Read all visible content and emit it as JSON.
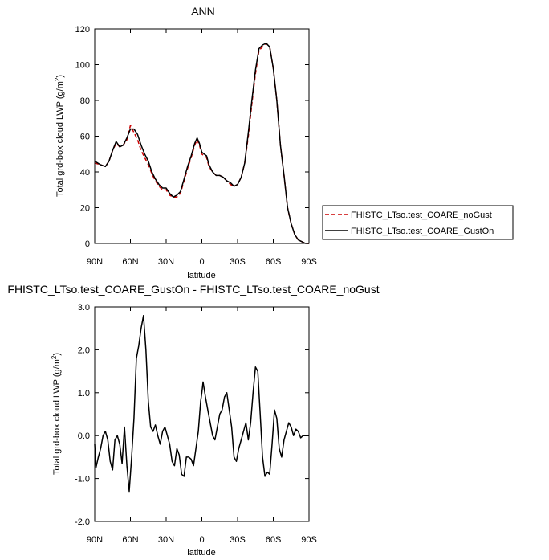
{
  "chart_data": [
    {
      "type": "line",
      "title": "ANN",
      "xlabel": "latitude",
      "ylabel": "Total grd-box cloud LWP (g/m",
      "ylabel_sup": "2",
      "ylabel_end": ")",
      "xlim": [
        -90,
        90
      ],
      "ylim": [
        0,
        120
      ],
      "x_ticks": [
        -90,
        -60,
        -30,
        0,
        30,
        60,
        90
      ],
      "x_tick_labels": [
        "90N",
        "60N",
        "30N",
        "0",
        "30S",
        "60S",
        "90S"
      ],
      "y_ticks": [
        0,
        20,
        40,
        60,
        80,
        100,
        120
      ],
      "y_tick_labels": [
        "0",
        "20",
        "40",
        "60",
        "80",
        "100",
        "120"
      ],
      "grid": false,
      "legend_position": "right",
      "series": [
        {
          "name": "FHISTC_LTso.test_COARE_noGust",
          "color": "#cc0000",
          "dash": "dashed",
          "x": [
            -90,
            -85,
            -81,
            -78,
            -75,
            -72,
            -69,
            -66,
            -63,
            -60,
            -57,
            -54,
            -51,
            -48,
            -45,
            -42,
            -39,
            -36,
            -33,
            -30,
            -27,
            -24,
            -21,
            -18,
            -15,
            -12,
            -9,
            -6,
            -4,
            -2,
            0,
            2,
            4,
            6,
            9,
            12,
            15,
            18,
            21,
            24,
            27,
            30,
            33,
            36,
            39,
            42,
            45,
            48,
            51,
            54,
            57,
            60,
            63,
            66,
            69,
            72,
            75,
            78,
            81,
            84,
            87,
            90
          ],
          "y": [
            45,
            44,
            43,
            46,
            52,
            56,
            54,
            55,
            58,
            66,
            62,
            58,
            52,
            48,
            44,
            39,
            35,
            32,
            30,
            30,
            27,
            26,
            26,
            28,
            35,
            42,
            48,
            55,
            58,
            55,
            50,
            49,
            48,
            43,
            40,
            38,
            38,
            37,
            35,
            33,
            32,
            33,
            37,
            45,
            60,
            78,
            95,
            108,
            110,
            112,
            110,
            98,
            80,
            55,
            38,
            20,
            11,
            5,
            2,
            1,
            0,
            0
          ]
        },
        {
          "name": "FHISTC_LTso.test_COARE_GustOn",
          "color": "#000000",
          "dash": "solid",
          "x": [
            -90,
            -85,
            -81,
            -78,
            -75,
            -72,
            -69,
            -66,
            -63,
            -60,
            -57,
            -54,
            -51,
            -48,
            -45,
            -42,
            -39,
            -36,
            -33,
            -30,
            -27,
            -24,
            -21,
            -18,
            -15,
            -12,
            -9,
            -6,
            -4,
            -2,
            0,
            2,
            4,
            6,
            9,
            12,
            15,
            18,
            21,
            24,
            27,
            30,
            33,
            36,
            39,
            42,
            45,
            48,
            51,
            54,
            57,
            60,
            63,
            66,
            69,
            72,
            75,
            78,
            81,
            84,
            87,
            90
          ],
          "y": [
            46,
            44,
            43,
            46,
            52,
            57,
            54,
            55,
            59,
            64,
            64,
            61,
            55,
            50,
            46,
            40,
            36,
            33,
            31,
            31,
            28,
            26,
            27,
            29,
            36,
            43,
            49,
            56,
            59,
            56,
            51,
            50,
            49,
            44,
            40,
            38,
            38,
            37,
            35,
            34,
            32,
            33,
            37,
            45,
            62,
            80,
            97,
            109,
            111,
            112,
            110,
            98,
            80,
            55,
            38,
            20,
            11,
            5,
            2,
            1,
            0,
            0
          ]
        }
      ]
    },
    {
      "type": "line",
      "title": "FHISTC_LTso.test_COARE_GustOn - FHISTC_LTso.test_COARE_noGust",
      "xlabel": "latitude",
      "ylabel": "Total grd-box cloud LWP (g/m",
      "ylabel_sup": "2",
      "ylabel_end": ")",
      "xlim": [
        -90,
        90
      ],
      "ylim": [
        -2.0,
        3.0
      ],
      "x_ticks": [
        -90,
        -60,
        -30,
        0,
        30,
        60,
        90
      ],
      "x_tick_labels": [
        "90N",
        "60N",
        "30N",
        "0",
        "30S",
        "60S",
        "90S"
      ],
      "y_ticks": [
        -2.0,
        -1.0,
        0.0,
        1.0,
        2.0,
        3.0
      ],
      "y_tick_labels": [
        "-2.0",
        "-1.0",
        "0.0",
        "1.0",
        "2.0",
        "3.0"
      ],
      "grid": false,
      "series": [
        {
          "color": "#000000",
          "dash": "solid",
          "x": [
            -90,
            -89,
            -87,
            -85,
            -83,
            -81,
            -79,
            -77,
            -75,
            -73,
            -71,
            -69,
            -67,
            -65,
            -63,
            -61,
            -59,
            -57,
            -55,
            -53,
            -51,
            -49,
            -47,
            -45,
            -43,
            -41,
            -39,
            -37,
            -35,
            -33,
            -31,
            -29,
            -27,
            -25,
            -23,
            -21,
            -19,
            -17,
            -15,
            -13,
            -11,
            -9,
            -7,
            -5,
            -3,
            -1,
            0,
            1,
            3,
            5,
            7,
            9,
            11,
            13,
            15,
            17,
            19,
            21,
            23,
            25,
            27,
            29,
            31,
            33,
            35,
            37,
            39,
            41,
            43,
            45,
            47,
            49,
            51,
            53,
            55,
            57,
            59,
            61,
            63,
            65,
            67,
            69,
            71,
            73,
            75,
            77,
            79,
            81,
            83,
            85,
            87,
            90
          ],
          "y": [
            -0.2,
            -0.75,
            -0.5,
            -0.3,
            0.0,
            0.1,
            -0.1,
            -0.6,
            -0.8,
            -0.1,
            0.0,
            -0.2,
            -0.65,
            0.2,
            -0.7,
            -1.3,
            -0.5,
            0.4,
            1.8,
            2.1,
            2.5,
            2.8,
            2.0,
            0.8,
            0.2,
            0.1,
            0.25,
            0.0,
            -0.2,
            0.1,
            0.2,
            0.0,
            -0.2,
            -0.6,
            -0.7,
            -0.3,
            -0.45,
            -0.9,
            -0.95,
            -0.5,
            -0.5,
            -0.55,
            -0.7,
            -0.3,
            0.1,
            0.8,
            1.0,
            1.25,
            0.9,
            0.6,
            0.3,
            0.0,
            -0.1,
            0.2,
            0.5,
            0.6,
            0.9,
            1.0,
            0.6,
            0.2,
            -0.5,
            -0.6,
            -0.3,
            -0.1,
            0.1,
            0.3,
            -0.1,
            0.3,
            1.0,
            1.6,
            1.5,
            0.5,
            -0.5,
            -0.95,
            -0.85,
            -0.9,
            -0.2,
            0.6,
            0.4,
            -0.3,
            -0.5,
            -0.1,
            0.1,
            0.3,
            0.2,
            0.0,
            0.15,
            0.1,
            -0.05,
            0.0,
            0.0,
            0.0
          ]
        }
      ]
    }
  ]
}
